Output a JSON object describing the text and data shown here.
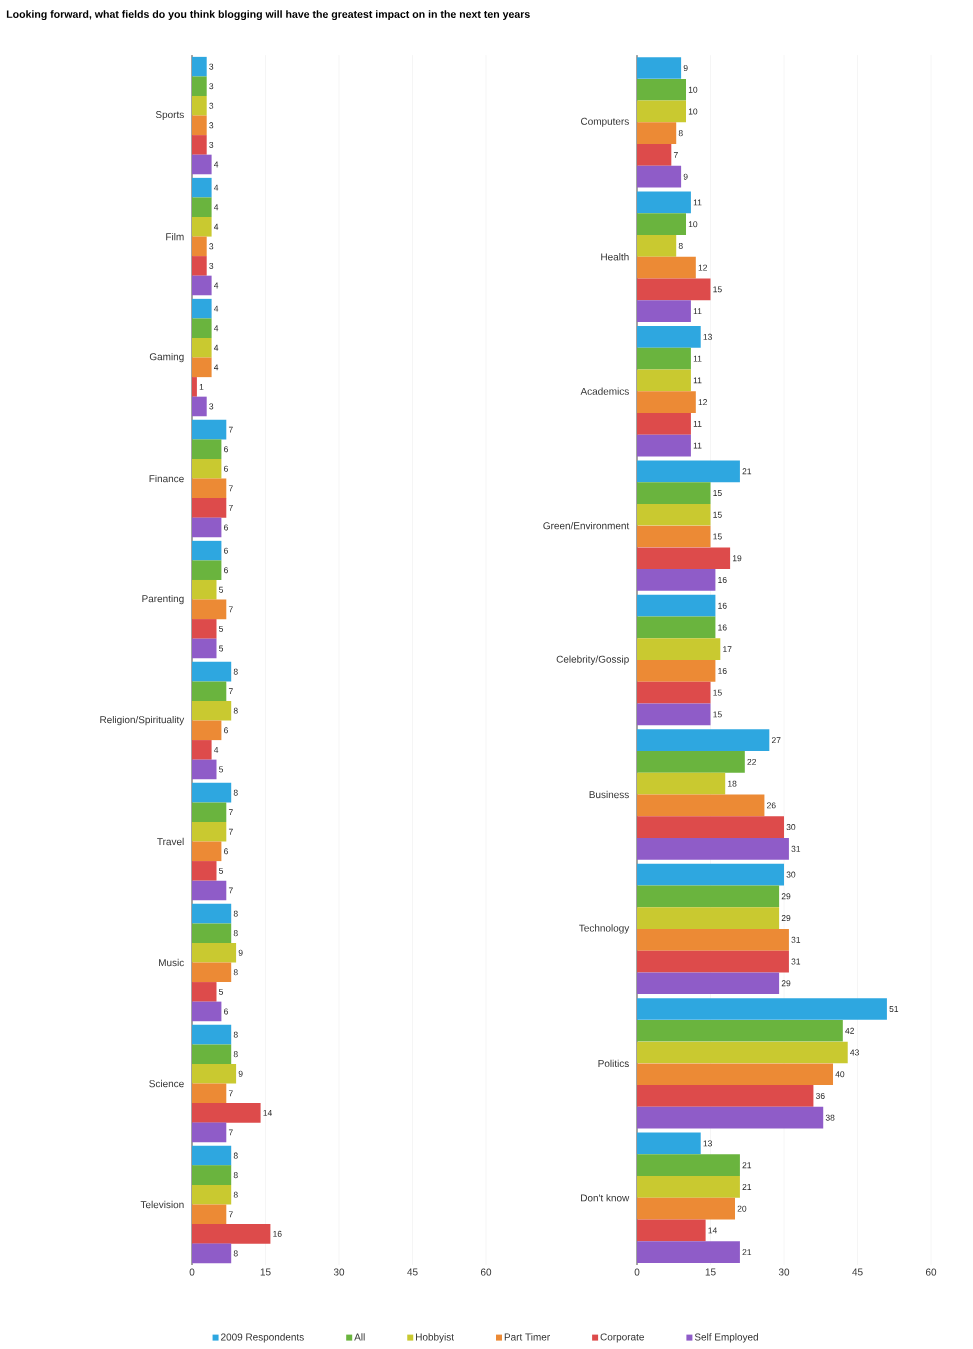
{
  "chart_data": [
    {
      "type": "bar",
      "orientation": "horizontal",
      "title": "Looking forward, what fields do you think blogging will have the greatest impact on in the next ten years",
      "legend": "bottom",
      "data_labels": true,
      "grid": "x",
      "categories": [
        "Sports",
        "Film",
        "Gaming",
        "Finance",
        "Parenting",
        "Religion/Spirituality",
        "Travel",
        "Music",
        "Science",
        "Television"
      ],
      "xlim": [
        0,
        60
      ],
      "xticks": [
        0,
        15,
        30,
        45,
        60
      ],
      "series": [
        {
          "name": "2009 Respondents",
          "color": "#2ea7e0",
          "values": [
            3,
            4,
            4,
            7,
            6,
            8,
            8,
            8,
            8,
            8
          ]
        },
        {
          "name": "All",
          "color": "#6ab43e",
          "values": [
            3,
            4,
            4,
            6,
            6,
            7,
            7,
            8,
            8,
            8
          ]
        },
        {
          "name": "Hobbyist",
          "color": "#c9c930",
          "values": [
            3,
            4,
            4,
            6,
            5,
            8,
            7,
            9,
            9,
            8
          ]
        },
        {
          "name": "Part Timer",
          "color": "#ec8a35",
          "values": [
            3,
            3,
            4,
            7,
            7,
            6,
            6,
            8,
            7,
            7
          ]
        },
        {
          "name": "Corporate",
          "color": "#dd4b4b",
          "values": [
            3,
            3,
            1,
            7,
            5,
            4,
            5,
            5,
            14,
            16
          ]
        },
        {
          "name": "Self Employed",
          "color": "#8f5cc8",
          "values": [
            4,
            4,
            3,
            6,
            5,
            5,
            7,
            6,
            7,
            8
          ]
        }
      ]
    },
    {
      "type": "bar",
      "orientation": "horizontal",
      "data_labels": true,
      "grid": "x",
      "categories": [
        "Computers",
        "Health",
        "Academics",
        "Green/Environment",
        "Celebrity/Gossip",
        "Business",
        "Technology",
        "Politics",
        "Don't know"
      ],
      "xlim": [
        0,
        60
      ],
      "xticks": [
        0,
        15,
        30,
        45,
        60
      ],
      "series": [
        {
          "color": "#2ea7e0",
          "values": [
            9,
            11,
            13,
            21,
            16,
            27,
            30,
            51,
            13
          ]
        },
        {
          "color": "#6ab43e",
          "values": [
            10,
            10,
            11,
            15,
            16,
            22,
            29,
            42,
            21
          ]
        },
        {
          "color": "#c9c930",
          "values": [
            10,
            8,
            11,
            15,
            17,
            18,
            29,
            43,
            21
          ]
        },
        {
          "color": "#ec8a35",
          "values": [
            8,
            12,
            12,
            15,
            16,
            26,
            31,
            40,
            20
          ]
        },
        {
          "color": "#dd4b4b",
          "values": [
            7,
            15,
            11,
            19,
            15,
            30,
            31,
            36,
            14
          ]
        },
        {
          "color": "#8f5cc8",
          "values": [
            9,
            11,
            11,
            16,
            15,
            31,
            29,
            38,
            21
          ]
        }
      ]
    }
  ]
}
